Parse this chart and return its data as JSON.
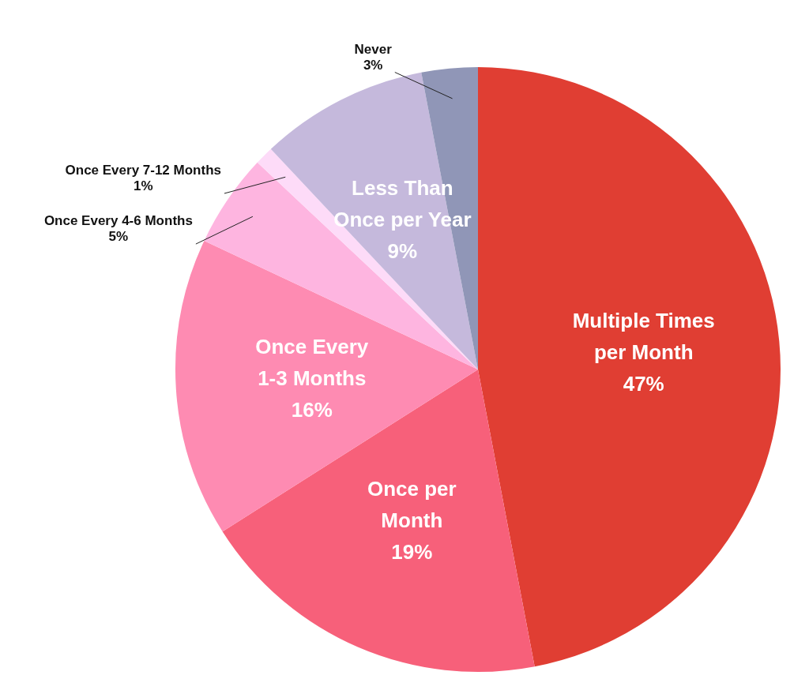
{
  "chart_data": {
    "type": "pie",
    "categories": [
      "Multiple Times per Month",
      "Once per Month",
      "Once Every 1-3 Months",
      "Once Every 4-6 Months",
      "Once Every 7-12 Months",
      "Less Than Once per Year",
      "Never"
    ],
    "values": [
      47,
      19,
      16,
      5,
      1,
      9,
      3
    ],
    "value_labels": [
      "47%",
      "19%",
      "16%",
      "5%",
      "1%",
      "9%",
      "3%"
    ],
    "colors": [
      "#e03e33",
      "#f7607a",
      "#fe8bb2",
      "#feb5e0",
      "#fddbf8",
      "#c5b9dc",
      "#9096b7"
    ]
  }
}
